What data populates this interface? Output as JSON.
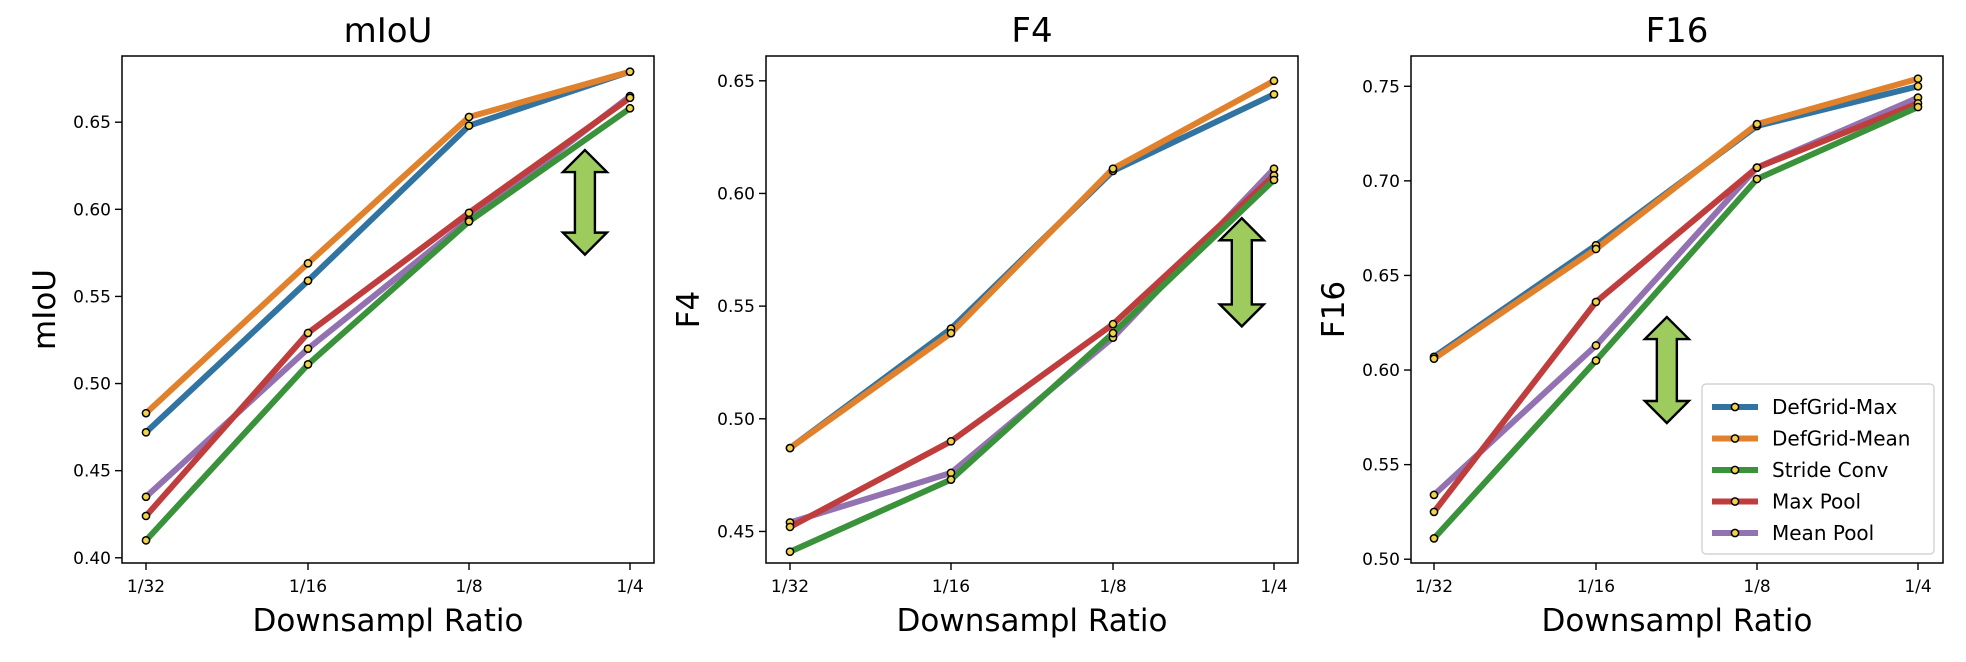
{
  "colors": {
    "DefGrid-Max": "#3274a1",
    "DefGrid-Mean": "#e1812c",
    "Stride Conv": "#3a923a",
    "Max Pool": "#c03d3e",
    "Mean Pool": "#9372b2",
    "marker_fill": "#f2d24a",
    "arrow_fill": "#9dcb5e"
  },
  "legend": [
    "DefGrid-Max",
    "DefGrid-Mean",
    "Stride Conv",
    "Max Pool",
    "Mean Pool"
  ],
  "chart_data": [
    {
      "type": "line",
      "title": "mIoU",
      "xlabel": "Downsampl Ratio",
      "ylabel": "mIoU",
      "categories": [
        "1/32",
        "1/16",
        "1/8",
        "1/4"
      ],
      "ylim": [
        0.397,
        0.688
      ],
      "yticks": [
        0.4,
        0.45,
        0.5,
        0.55,
        0.6,
        0.65
      ],
      "ytick_labels": [
        "0.40",
        "0.45",
        "0.50",
        "0.55",
        "0.60",
        "0.65"
      ],
      "series": [
        {
          "name": "DefGrid-Max",
          "values": [
            0.472,
            0.559,
            0.648,
            0.679
          ]
        },
        {
          "name": "DefGrid-Mean",
          "values": [
            0.483,
            0.569,
            0.653,
            0.679
          ]
        },
        {
          "name": "Stride Conv",
          "values": [
            0.41,
            0.511,
            0.593,
            0.658
          ]
        },
        {
          "name": "Max Pool",
          "values": [
            0.424,
            0.529,
            0.598,
            0.664
          ]
        },
        {
          "name": "Mean Pool",
          "values": [
            0.435,
            0.52,
            0.594,
            0.665
          ]
        }
      ],
      "arrow": {
        "x": 2.72,
        "y_top": 0.634,
        "y_bottom": 0.574
      },
      "legend_shown": false
    },
    {
      "type": "line",
      "title": "F4",
      "xlabel": "Downsampl Ratio",
      "ylabel": "F4",
      "categories": [
        "1/32",
        "1/16",
        "1/8",
        "1/4"
      ],
      "ylim": [
        0.436,
        0.661
      ],
      "yticks": [
        0.45,
        0.5,
        0.55,
        0.6,
        0.65
      ],
      "ytick_labels": [
        "0.45",
        "0.50",
        "0.55",
        "0.60",
        "0.65"
      ],
      "series": [
        {
          "name": "DefGrid-Max",
          "values": [
            0.487,
            0.54,
            0.61,
            0.644
          ]
        },
        {
          "name": "DefGrid-Mean",
          "values": [
            0.487,
            0.538,
            0.611,
            0.65
          ]
        },
        {
          "name": "Stride Conv",
          "values": [
            0.441,
            0.473,
            0.538,
            0.606
          ]
        },
        {
          "name": "Max Pool",
          "values": [
            0.452,
            0.49,
            0.542,
            0.608
          ]
        },
        {
          "name": "Mean Pool",
          "values": [
            0.454,
            0.476,
            0.536,
            0.611
          ]
        }
      ],
      "arrow": {
        "x": 2.8,
        "y_top": 0.589,
        "y_bottom": 0.541
      },
      "legend_shown": false
    },
    {
      "type": "line",
      "title": "F16",
      "xlabel": "Downsampl Ratio",
      "ylabel": "F16",
      "categories": [
        "1/32",
        "1/16",
        "1/8",
        "1/4"
      ],
      "ylim": [
        0.498,
        0.766
      ],
      "yticks": [
        0.5,
        0.55,
        0.6,
        0.65,
        0.7,
        0.75
      ],
      "ytick_labels": [
        "0.50",
        "0.55",
        "0.60",
        "0.65",
        "0.70",
        "0.75"
      ],
      "series": [
        {
          "name": "DefGrid-Max",
          "values": [
            0.607,
            0.666,
            0.729,
            0.75
          ]
        },
        {
          "name": "DefGrid-Mean",
          "values": [
            0.606,
            0.664,
            0.73,
            0.754
          ]
        },
        {
          "name": "Stride Conv",
          "values": [
            0.511,
            0.605,
            0.701,
            0.739
          ]
        },
        {
          "name": "Max Pool",
          "values": [
            0.525,
            0.636,
            0.707,
            0.741
          ]
        },
        {
          "name": "Mean Pool",
          "values": [
            0.534,
            0.613,
            0.707,
            0.744
          ]
        }
      ],
      "arrow": {
        "x": 1.44,
        "y_top": 0.628,
        "y_bottom": 0.572
      },
      "legend_shown": true,
      "legend_position": "lower right"
    }
  ]
}
